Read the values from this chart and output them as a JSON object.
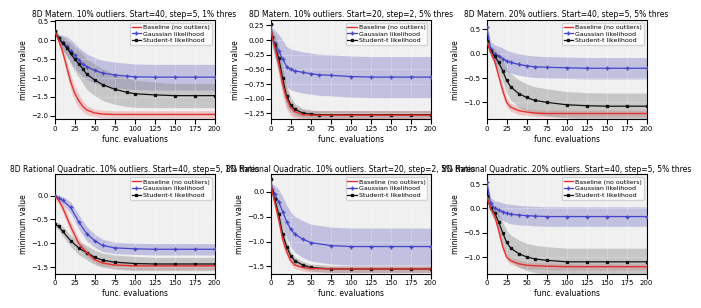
{
  "panels": [
    {
      "title": "8D Matern. 10% outliers. Start=40, step=5, 1% thres",
      "xlim": [
        0,
        200
      ],
      "ylim": [
        -2.1,
        0.55
      ],
      "yticks": [
        0.5,
        0.0,
        -0.5,
        -1.0,
        -1.5,
        -2.0
      ],
      "x_data": [
        0,
        5,
        10,
        15,
        20,
        25,
        30,
        35,
        40,
        50,
        60,
        75,
        90,
        100,
        125,
        150,
        175,
        200
      ],
      "red_mean": [
        0.25,
        0.0,
        -0.3,
        -0.7,
        -1.1,
        -1.4,
        -1.6,
        -1.75,
        -1.85,
        -1.93,
        -1.96,
        -1.97,
        -1.97,
        -1.97,
        -1.97,
        -1.97,
        -1.97,
        -1.97
      ],
      "red_std": [
        0.05,
        0.1,
        0.15,
        0.18,
        0.2,
        0.2,
        0.18,
        0.15,
        0.12,
        0.1,
        0.1,
        0.1,
        0.1,
        0.1,
        0.1,
        0.1,
        0.1,
        0.1
      ],
      "blue_mean": [
        0.25,
        0.05,
        -0.05,
        -0.15,
        -0.28,
        -0.4,
        -0.52,
        -0.62,
        -0.7,
        -0.8,
        -0.87,
        -0.92,
        -0.95,
        -0.97,
        -0.98,
        -0.98,
        -0.98,
        -0.98
      ],
      "blue_std": [
        0.05,
        0.1,
        0.18,
        0.25,
        0.3,
        0.32,
        0.33,
        0.34,
        0.34,
        0.34,
        0.34,
        0.34,
        0.34,
        0.34,
        0.34,
        0.34,
        0.34,
        0.34
      ],
      "black_mean": [
        0.25,
        0.05,
        -0.08,
        -0.2,
        -0.35,
        -0.5,
        -0.62,
        -0.75,
        -0.9,
        -1.05,
        -1.18,
        -1.3,
        -1.38,
        -1.42,
        -1.45,
        -1.47,
        -1.47,
        -1.47
      ],
      "black_std": [
        0.05,
        0.12,
        0.18,
        0.22,
        0.27,
        0.32,
        0.35,
        0.38,
        0.4,
        0.42,
        0.42,
        0.4,
        0.38,
        0.36,
        0.34,
        0.32,
        0.32,
        0.32
      ]
    },
    {
      "title": "8D Matern. 10% outliers. Start=20, step=2, 5% thres",
      "xlim": [
        0,
        200
      ],
      "ylim": [
        -1.35,
        0.35
      ],
      "yticks": [
        0.25,
        0.0,
        -0.25,
        -0.5,
        -0.75,
        -1.0,
        -1.25
      ],
      "x_data": [
        0,
        2,
        5,
        10,
        15,
        20,
        25,
        30,
        40,
        50,
        60,
        75,
        100,
        125,
        150,
        175,
        200
      ],
      "red_mean": [
        0.27,
        0.05,
        -0.1,
        -0.4,
        -0.75,
        -1.0,
        -1.15,
        -1.22,
        -1.27,
        -1.28,
        -1.28,
        -1.28,
        -1.28,
        -1.28,
        -1.28,
        -1.28,
        -1.28
      ],
      "red_std": [
        0.05,
        0.1,
        0.15,
        0.2,
        0.2,
        0.18,
        0.14,
        0.1,
        0.08,
        0.08,
        0.08,
        0.08,
        0.08,
        0.08,
        0.08,
        0.08,
        0.08
      ],
      "blue_mean": [
        0.27,
        0.05,
        -0.05,
        -0.18,
        -0.32,
        -0.45,
        -0.5,
        -0.52,
        -0.55,
        -0.57,
        -0.59,
        -0.6,
        -0.62,
        -0.63,
        -0.63,
        -0.63,
        -0.63
      ],
      "blue_std": [
        0.05,
        0.15,
        0.22,
        0.28,
        0.32,
        0.34,
        0.35,
        0.35,
        0.35,
        0.35,
        0.35,
        0.35,
        0.35,
        0.35,
        0.35,
        0.35,
        0.35
      ],
      "black_mean": [
        0.27,
        0.05,
        -0.08,
        -0.3,
        -0.65,
        -0.95,
        -1.1,
        -1.18,
        -1.24,
        -1.26,
        -1.27,
        -1.27,
        -1.27,
        -1.27,
        -1.27,
        -1.27,
        -1.27
      ],
      "black_std": [
        0.05,
        0.12,
        0.18,
        0.22,
        0.22,
        0.18,
        0.14,
        0.1,
        0.08,
        0.07,
        0.07,
        0.07,
        0.07,
        0.07,
        0.07,
        0.07,
        0.07
      ]
    },
    {
      "title": "8D Matern. 20% outliers. Start=40, step=5, 5% thres",
      "xlim": [
        0,
        200
      ],
      "ylim": [
        -1.35,
        0.7
      ],
      "yticks": [
        0.5,
        0.0,
        -0.5,
        -1.0
      ],
      "x_data": [
        0,
        5,
        10,
        15,
        20,
        25,
        30,
        40,
        50,
        60,
        75,
        100,
        125,
        150,
        175,
        200
      ],
      "red_mean": [
        0.25,
        0.05,
        -0.15,
        -0.45,
        -0.75,
        -1.0,
        -1.1,
        -1.17,
        -1.2,
        -1.22,
        -1.23,
        -1.23,
        -1.23,
        -1.23,
        -1.23,
        -1.23
      ],
      "red_std": [
        0.05,
        0.08,
        0.1,
        0.12,
        0.12,
        0.1,
        0.08,
        0.08,
        0.07,
        0.07,
        0.07,
        0.07,
        0.07,
        0.07,
        0.07,
        0.07
      ],
      "blue_mean": [
        0.55,
        0.1,
        0.0,
        -0.05,
        -0.1,
        -0.15,
        -0.18,
        -0.22,
        -0.25,
        -0.27,
        -0.28,
        -0.29,
        -0.3,
        -0.3,
        -0.3,
        -0.3
      ],
      "blue_std": [
        0.1,
        0.15,
        0.18,
        0.2,
        0.22,
        0.22,
        0.22,
        0.22,
        0.22,
        0.22,
        0.22,
        0.22,
        0.22,
        0.22,
        0.22,
        0.22
      ],
      "black_mean": [
        0.25,
        0.05,
        -0.05,
        -0.18,
        -0.35,
        -0.55,
        -0.68,
        -0.82,
        -0.9,
        -0.96,
        -1.0,
        -1.05,
        -1.07,
        -1.08,
        -1.08,
        -1.08
      ],
      "black_std": [
        0.05,
        0.1,
        0.15,
        0.18,
        0.22,
        0.25,
        0.27,
        0.28,
        0.28,
        0.28,
        0.28,
        0.27,
        0.27,
        0.27,
        0.27,
        0.27
      ]
    },
    {
      "title": "8D Rational Quadratic. 10% outliers. Start=40, step=5, 1% thres",
      "xlim": [
        0,
        200
      ],
      "ylim": [
        -1.65,
        0.45
      ],
      "yticks": [
        0.0,
        -0.5,
        -1.0,
        -1.5
      ],
      "x_data": [
        0,
        5,
        10,
        20,
        30,
        40,
        50,
        60,
        75,
        100,
        125,
        150,
        175,
        200
      ],
      "red_mean": [
        0.0,
        -0.1,
        -0.25,
        -0.65,
        -1.0,
        -1.2,
        -1.35,
        -1.42,
        -1.46,
        -1.48,
        -1.48,
        -1.48,
        -1.48,
        -1.48
      ],
      "red_std": [
        0.05,
        0.08,
        0.1,
        0.12,
        0.1,
        0.08,
        0.07,
        0.07,
        0.07,
        0.07,
        0.07,
        0.07,
        0.07,
        0.07
      ],
      "blue_mean": [
        0.0,
        -0.05,
        -0.1,
        -0.25,
        -0.55,
        -0.8,
        -0.95,
        -1.05,
        -1.1,
        -1.12,
        -1.13,
        -1.13,
        -1.13,
        -1.13
      ],
      "blue_std": [
        0.04,
        0.06,
        0.08,
        0.12,
        0.15,
        0.15,
        0.14,
        0.13,
        0.12,
        0.12,
        0.12,
        0.12,
        0.12,
        0.12
      ],
      "black_mean": [
        -0.6,
        -0.65,
        -0.75,
        -0.95,
        -1.1,
        -1.2,
        -1.3,
        -1.36,
        -1.4,
        -1.43,
        -1.44,
        -1.44,
        -1.44,
        -1.44
      ],
      "black_std": [
        0.05,
        0.08,
        0.1,
        0.12,
        0.14,
        0.15,
        0.15,
        0.15,
        0.15,
        0.15,
        0.14,
        0.14,
        0.14,
        0.14
      ]
    },
    {
      "title": "8D Rational Quadratic. 10% outliers. Start=20, step=2, 5% thres",
      "xlim": [
        0,
        200
      ],
      "ylim": [
        -1.65,
        0.35
      ],
      "yticks": [
        0.0,
        -0.5,
        -1.0,
        -1.5
      ],
      "x_data": [
        0,
        2,
        5,
        10,
        15,
        20,
        25,
        30,
        40,
        50,
        75,
        100,
        125,
        150,
        175,
        200
      ],
      "red_mean": [
        0.25,
        0.0,
        -0.2,
        -0.55,
        -0.95,
        -1.2,
        -1.38,
        -1.47,
        -1.52,
        -1.54,
        -1.55,
        -1.55,
        -1.55,
        -1.55,
        -1.55,
        -1.55
      ],
      "red_std": [
        0.05,
        0.08,
        0.12,
        0.14,
        0.13,
        0.1,
        0.08,
        0.07,
        0.07,
        0.07,
        0.07,
        0.07,
        0.07,
        0.07,
        0.07,
        0.07
      ],
      "blue_mean": [
        0.25,
        0.05,
        -0.05,
        -0.2,
        -0.4,
        -0.6,
        -0.75,
        -0.85,
        -0.95,
        -1.02,
        -1.08,
        -1.1,
        -1.1,
        -1.1,
        -1.1,
        -1.1
      ],
      "blue_std": [
        0.05,
        0.1,
        0.18,
        0.25,
        0.3,
        0.33,
        0.35,
        0.36,
        0.37,
        0.37,
        0.37,
        0.37,
        0.37,
        0.37,
        0.37,
        0.37
      ],
      "black_mean": [
        0.25,
        0.0,
        -0.15,
        -0.45,
        -0.85,
        -1.1,
        -1.28,
        -1.38,
        -1.47,
        -1.52,
        -1.55,
        -1.55,
        -1.55,
        -1.55,
        -1.55,
        -1.55
      ],
      "black_std": [
        0.05,
        0.1,
        0.14,
        0.16,
        0.15,
        0.12,
        0.1,
        0.08,
        0.07,
        0.07,
        0.07,
        0.07,
        0.07,
        0.07,
        0.07,
        0.07
      ]
    },
    {
      "title": "8D Rational Quadratic. 20% outliers. Start=40, step=5, 5% thres",
      "xlim": [
        0,
        200
      ],
      "ylim": [
        -1.35,
        0.7
      ],
      "yticks": [
        0.5,
        0.0,
        -0.5,
        -1.0
      ],
      "x_data": [
        0,
        5,
        10,
        15,
        20,
        25,
        30,
        40,
        50,
        60,
        75,
        100,
        125,
        150,
        175,
        200
      ],
      "red_mean": [
        0.25,
        0.0,
        -0.15,
        -0.45,
        -0.78,
        -1.0,
        -1.08,
        -1.14,
        -1.17,
        -1.18,
        -1.19,
        -1.2,
        -1.2,
        -1.2,
        -1.2,
        -1.2
      ],
      "red_std": [
        0.05,
        0.07,
        0.09,
        0.1,
        0.1,
        0.08,
        0.07,
        0.07,
        0.07,
        0.07,
        0.07,
        0.07,
        0.07,
        0.07,
        0.07,
        0.07
      ],
      "blue_mean": [
        0.55,
        0.1,
        0.0,
        -0.03,
        -0.07,
        -0.1,
        -0.12,
        -0.14,
        -0.15,
        -0.16,
        -0.17,
        -0.17,
        -0.17,
        -0.17,
        -0.17,
        -0.17
      ],
      "blue_std": [
        0.1,
        0.12,
        0.15,
        0.17,
        0.18,
        0.19,
        0.2,
        0.2,
        0.2,
        0.2,
        0.2,
        0.2,
        0.2,
        0.2,
        0.2,
        0.2
      ],
      "black_mean": [
        0.25,
        0.0,
        -0.1,
        -0.28,
        -0.5,
        -0.7,
        -0.82,
        -0.93,
        -1.0,
        -1.04,
        -1.07,
        -1.1,
        -1.1,
        -1.1,
        -1.1,
        -1.1
      ],
      "black_std": [
        0.05,
        0.1,
        0.15,
        0.18,
        0.22,
        0.25,
        0.27,
        0.28,
        0.28,
        0.28,
        0.28,
        0.28,
        0.28,
        0.28,
        0.28,
        0.28
      ]
    }
  ],
  "xlabel": "func. evaluations",
  "ylabel": "minimum value",
  "xticks": [
    0,
    25,
    50,
    75,
    100,
    125,
    150,
    175,
    200
  ],
  "red_color": "#e53030",
  "blue_color": "#4444cc",
  "black_color": "#111111",
  "red_fill_color": "#e88888",
  "blue_fill_color": "#8888cc",
  "black_fill_color": "#888888",
  "legend_labels": [
    "Baseline (no outliers)",
    "Gaussian likelihood",
    "Student-t likelihood"
  ],
  "title_fontsize": 5.5,
  "label_fontsize": 5.5,
  "tick_fontsize": 5,
  "legend_fontsize": 4.5,
  "bg_color": "#f0f0f0"
}
